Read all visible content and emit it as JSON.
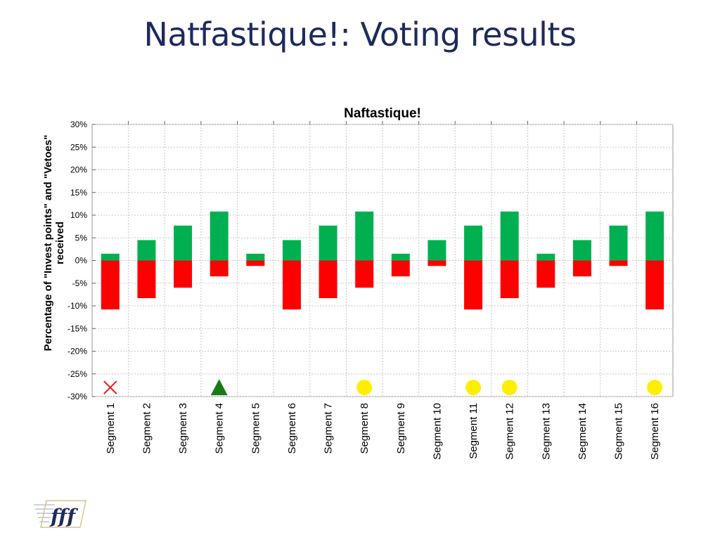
{
  "slide": {
    "title": "Natfastique!: Voting results"
  },
  "logo": {
    "icon": "fff-logo-icon",
    "text": "fff"
  },
  "colors": {
    "invest": "#00b050",
    "veto": "#ff0000",
    "grid": "#c8c8c8",
    "marker_cross": "#e41a1c",
    "marker_triangle": "#1a7a1a",
    "marker_circle": "#ffee00",
    "title": "#1f2a5c"
  },
  "chart_data": {
    "type": "bar",
    "title": "Naftastique!",
    "ylabel": "Percentage of \"Invest points\" and \"Vetoes\" received",
    "ylabel_lines": [
      "Percentage of \"Invest points\" and \"Vetoes\"",
      "received"
    ],
    "xlabel": "",
    "ylim": [
      -30,
      30
    ],
    "yticks": [
      30,
      25,
      20,
      15,
      10,
      5,
      0,
      -5,
      -10,
      -15,
      -20,
      -25,
      -30
    ],
    "ytick_labels": [
      "30%",
      "25%",
      "20%",
      "15%",
      "10%",
      "5%",
      "0%",
      "-5%",
      "-10%",
      "-15%",
      "-20%",
      "-25%",
      "-30%"
    ],
    "grid": true,
    "categories": [
      "Segment 1",
      "Segment 2",
      "Segment 3",
      "Segment 4",
      "Segment 5",
      "Segment 6",
      "Segment 7",
      "Segment 8",
      "Segment 9",
      "Segment 10",
      "Segment 11",
      "Segment 12",
      "Segment 13",
      "Segment 14",
      "Segment 15",
      "Segment 16"
    ],
    "series": [
      {
        "key": "invest",
        "values": [
          1.5,
          4.5,
          7.7,
          10.8,
          1.5,
          4.5,
          7.7,
          10.8,
          1.5,
          4.5,
          7.7,
          10.8,
          1.5,
          4.5,
          7.7,
          10.8
        ]
      },
      {
        "key": "veto",
        "values": [
          -10.8,
          -8.3,
          -6.0,
          -3.5,
          -1.2,
          -10.8,
          -8.3,
          -6.0,
          -3.5,
          -1.2,
          -10.8,
          -8.3,
          -6.0,
          -3.5,
          -1.2,
          -10.8
        ]
      }
    ],
    "markers": {
      "y_value": -28,
      "items": [
        {
          "category_index": 0,
          "shape": "cross",
          "color": "#e41a1c"
        },
        {
          "category_index": 3,
          "shape": "triangle",
          "color": "#1a7a1a"
        },
        {
          "category_index": 7,
          "shape": "circle",
          "color": "#ffee00"
        },
        {
          "category_index": 10,
          "shape": "circle",
          "color": "#ffee00"
        },
        {
          "category_index": 11,
          "shape": "circle",
          "color": "#ffee00"
        },
        {
          "category_index": 15,
          "shape": "circle",
          "color": "#ffee00"
        }
      ]
    }
  }
}
